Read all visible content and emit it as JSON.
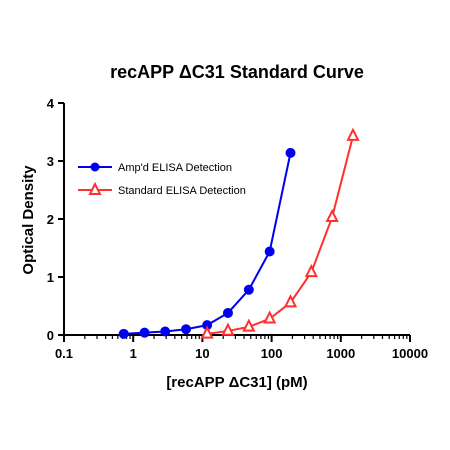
{
  "chart_data": {
    "type": "scatter",
    "title": "recAPP ΔC31 Standard Curve",
    "xlabel": "[recAPP ΔC31] (pM)",
    "ylabel": "Optical Density",
    "xscale": "log",
    "xlim": [
      0.1,
      10000
    ],
    "ylim": [
      0,
      4
    ],
    "x_ticks": [
      0.1,
      1,
      10,
      100,
      1000,
      10000
    ],
    "x_tick_labels": [
      "0.1",
      "1",
      "10",
      "100",
      "1000",
      "10000"
    ],
    "y_ticks": [
      0,
      1,
      2,
      3,
      4
    ],
    "y_tick_labels": [
      "0",
      "1",
      "2",
      "3",
      "4"
    ],
    "grid": false,
    "legend_position": "upper-left",
    "series": [
      {
        "name": "Amp'd ELISA Detection",
        "color": "#0000ee",
        "marker": "circle-filled",
        "x": [
          0.73,
          1.46,
          2.9,
          5.8,
          11.7,
          23.4,
          46.9,
          93.8,
          187.5
        ],
        "y": [
          0.02,
          0.04,
          0.06,
          0.1,
          0.17,
          0.38,
          0.78,
          1.44,
          3.14
        ]
      },
      {
        "name": "Standard ELISA Detection",
        "color": "#ff3030",
        "marker": "triangle-open",
        "x": [
          11.7,
          23.4,
          46.9,
          93.8,
          187.5,
          375,
          750,
          1500
        ],
        "y": [
          0.02,
          0.07,
          0.14,
          0.28,
          0.56,
          1.08,
          2.03,
          3.43
        ]
      }
    ]
  }
}
